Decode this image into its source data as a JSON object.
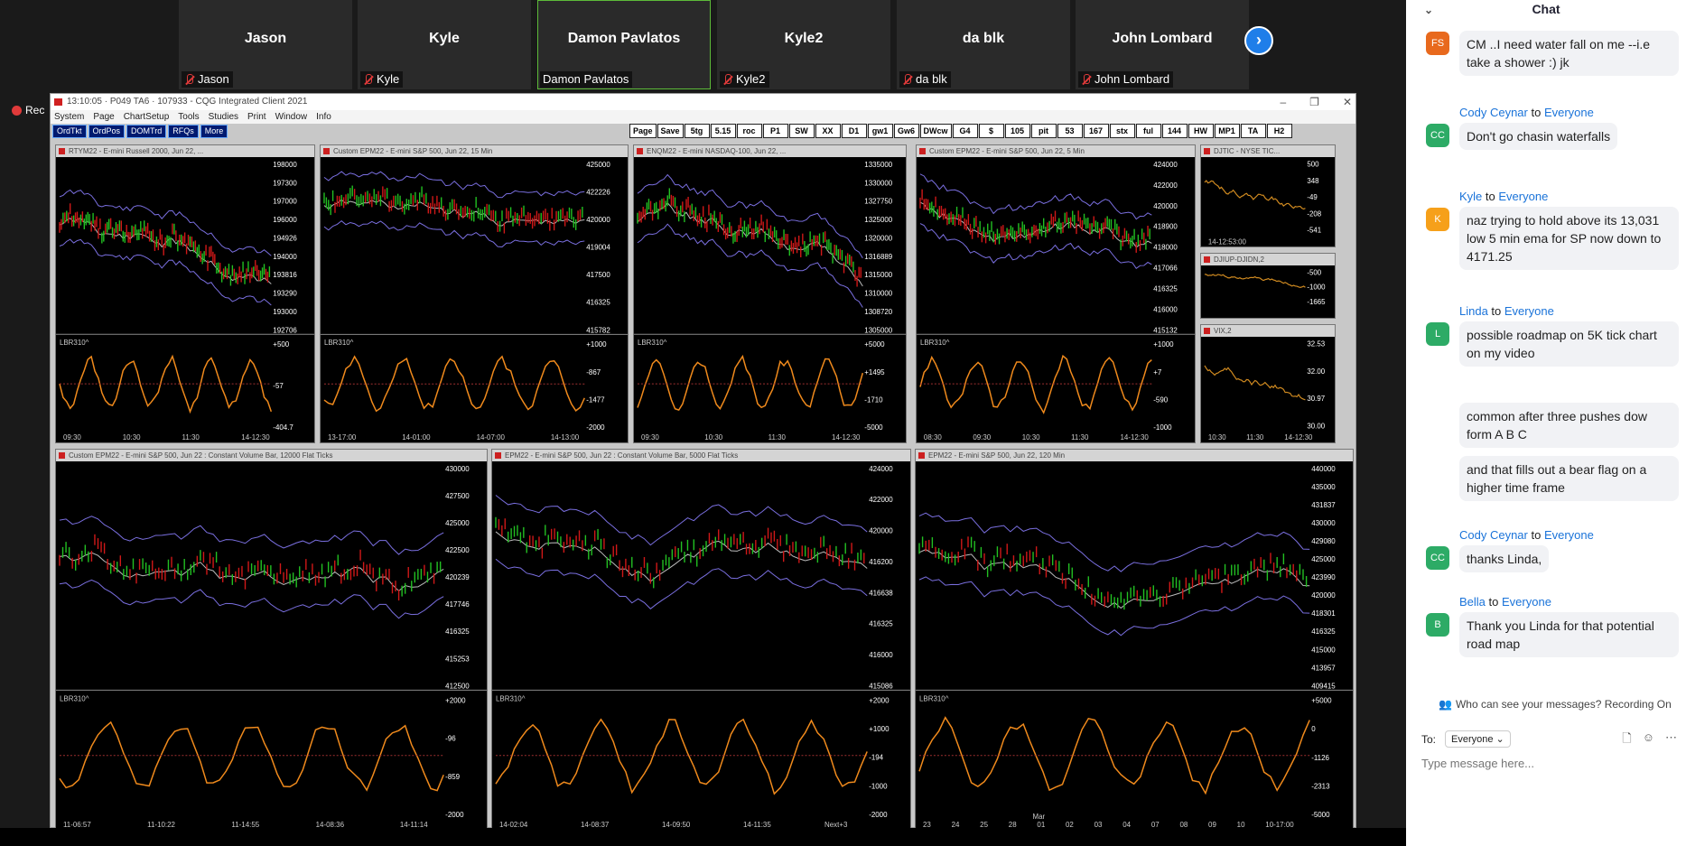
{
  "participants": [
    {
      "name": "Jason",
      "label": "Jason",
      "muted": true
    },
    {
      "name": "Kyle",
      "label": "Kyle",
      "muted": true
    },
    {
      "name": "Damon Pavlatos",
      "label": "Damon Pavlatos",
      "muted": false
    },
    {
      "name": "Kyle2",
      "label": "Kyle2",
      "muted": true
    },
    {
      "name": "da blk",
      "label": "da blk",
      "muted": true
    },
    {
      "name": "John Lombard",
      "label": "John Lombard",
      "muted": true
    }
  ],
  "recording_label": "Rec",
  "cqg": {
    "title": "13:10:05 · P049 TA6 · 107933 - CQG Integrated Client 2021",
    "menu": [
      "System",
      "Page",
      "ChartSetup",
      "Tools",
      "Studies",
      "Print",
      "Window",
      "Info"
    ],
    "toolbar_left": [
      "OrdTkt",
      "OrdPos",
      "DOMTrd",
      "RFQs",
      "More"
    ],
    "toolbar_right": [
      "Page",
      "Save",
      "5tg",
      "5.15",
      "roc",
      "P1",
      "SW",
      "XX",
      "D1",
      "gw1",
      "Gw6",
      "DWcw",
      "G4",
      "$",
      "105",
      "pit",
      "53",
      "167",
      "stx",
      "ful",
      "144",
      "HW",
      "MP1",
      "TA",
      "H2"
    ],
    "panes": [
      {
        "title": "RTYM22 - E-mini Russell 2000, Jun 22, ...",
        "study": "LBR310^",
        "prices": [
          "198000",
          "197300",
          "197000",
          "196000",
          "194926",
          "194000",
          "193816",
          "193290",
          "193000",
          "192706"
        ],
        "osc": [
          "+500",
          "-57",
          "-404.7"
        ],
        "times": [
          "09:30",
          "10:30",
          "11:30",
          "14-12:30"
        ]
      },
      {
        "title": "Custom EPM22 - E-mini S&P 500, Jun 22, 15 Min",
        "study": "LBR310^",
        "prices": [
          "425000",
          "422226",
          "420000",
          "419004",
          "417500",
          "416325",
          "415782"
        ],
        "osc": [
          "+1000",
          "-867",
          "-1477",
          "-2000"
        ],
        "times": [
          "13-17:00",
          "14-01:00",
          "14-07:00",
          "14-13:00"
        ]
      },
      {
        "title": "ENQM22 - E-mini NASDAQ-100, Jun 22, ...",
        "study": "LBR310^",
        "prices": [
          "1335000",
          "1330000",
          "1327750",
          "1325000",
          "1320000",
          "1316889",
          "1315000",
          "1310000",
          "1308720",
          "1305000"
        ],
        "osc": [
          "+5000",
          "+1495",
          "-1710",
          "-5000"
        ],
        "times": [
          "09:30",
          "10:30",
          "11:30",
          "14-12:30"
        ]
      },
      {
        "title": "Custom EPM22 - E-mini S&P 500, Jun 22, 5 Min",
        "study": "LBR310^",
        "prices": [
          "424000",
          "422000",
          "420000",
          "418900",
          "418000",
          "417066",
          "416325",
          "416000",
          "415132"
        ],
        "osc": [
          "+1000",
          "+7",
          "-590",
          "-1000"
        ],
        "times": [
          "08:30",
          "09:30",
          "10:30",
          "11:30",
          "14-12:30"
        ]
      },
      {
        "title": "DJTIC - NYSE TIC...",
        "study": "",
        "prices": [
          "500",
          "348",
          "-49",
          "-208",
          "-541"
        ],
        "osc": [],
        "times": [
          "14-12:53:00"
        ]
      },
      {
        "title": "DJIUP-DJIDN,2",
        "study": "",
        "prices": [
          "-500",
          "-1000",
          "-1665"
        ],
        "osc": [],
        "times": []
      },
      {
        "title": "VIX,2",
        "study": "",
        "prices": [
          "32.53",
          "32.00",
          "30.97",
          "30.00"
        ],
        "osc": [],
        "times": [
          "10:30",
          "11:30",
          "14-12:30"
        ]
      },
      {
        "title": "Custom EPM22 - E-mini S&P 500, Jun 22 : Constant Volume Bar, 12000 Flat Ticks",
        "study": "LBR310^",
        "prices": [
          "430000",
          "427500",
          "425000",
          "422500",
          "420239",
          "417746",
          "416325",
          "415253",
          "412500"
        ],
        "osc": [
          "+2000",
          "-96",
          "-859",
          "-2000"
        ],
        "times": [
          "11-06:57",
          "11-10:22",
          "11-14:55",
          "14-08:36",
          "14-11:14"
        ]
      },
      {
        "title": "EPM22 - E-mini S&P 500, Jun 22 : Constant Volume Bar, 5000 Flat Ticks",
        "study": "LBR310^",
        "prices": [
          "424000",
          "422000",
          "420000",
          "416200",
          "416638",
          "416325",
          "416000",
          "415086"
        ],
        "osc": [
          "+2000",
          "+1000",
          "-194",
          "-1000",
          "-2000"
        ],
        "times": [
          "14-02:04",
          "14-08:37",
          "14-09:50",
          "14-11:35",
          "Next+3"
        ]
      },
      {
        "title": "EPM22 - E-mini S&P 500, Jun 22, 120 Min",
        "study": "LBR310^",
        "prices": [
          "440000",
          "435000",
          "431837",
          "430000",
          "429080",
          "425000",
          "423990",
          "420000",
          "418301",
          "416325",
          "415000",
          "413957",
          "409415"
        ],
        "osc": [
          "+5000",
          "0",
          "-1126",
          "-2313",
          "-5000"
        ],
        "times": [
          "23",
          "24",
          "25",
          "28",
          "01",
          "02",
          "03",
          "04",
          "07",
          "08",
          "09",
          "10",
          "10-17:00"
        ],
        "month": "Mar"
      }
    ]
  },
  "chat": {
    "title": "Chat",
    "messages": [
      {
        "from": "",
        "to": "",
        "avatar": "FS",
        "color": "#e8691d",
        "text": "CM ..I need water fall on me --i.e take a shower :) jk"
      },
      {
        "from": "Cody Ceynar",
        "to": "Everyone",
        "avatar": "CC",
        "color": "#2dab66",
        "text": "Don't go chasin waterfalls"
      },
      {
        "from": "Kyle",
        "to": "Everyone",
        "avatar": "K",
        "color": "#f6a01a",
        "text": "naz trying to hold above its 13,031 low  5 min ema for SP now down to 4171.25"
      },
      {
        "from": "Linda",
        "to": "Everyone",
        "avatar": "L",
        "color": "#2dab66",
        "text": "possible roadmap on 5K tick chart on my video"
      },
      {
        "from": "",
        "to": "",
        "avatar": "",
        "color": "",
        "text": "common  after three pushes dow form A B  C"
      },
      {
        "from": "",
        "to": "",
        "avatar": "",
        "color": "",
        "text": "and that fills out a bear flag on a higher time frame"
      },
      {
        "from": "Cody Ceynar",
        "to": "Everyone",
        "avatar": "CC",
        "color": "#2dab66",
        "text": "thanks Linda,"
      },
      {
        "from": "Bella",
        "to": "Everyone",
        "avatar": "B",
        "color": "#2dab66",
        "text": "Thank you Linda for that potential road map"
      }
    ],
    "to_word": "to",
    "visibility": "Who can see your messages? Recording On",
    "to_label": "To:",
    "to_value": "Everyone",
    "input_placeholder": "Type message here..."
  }
}
